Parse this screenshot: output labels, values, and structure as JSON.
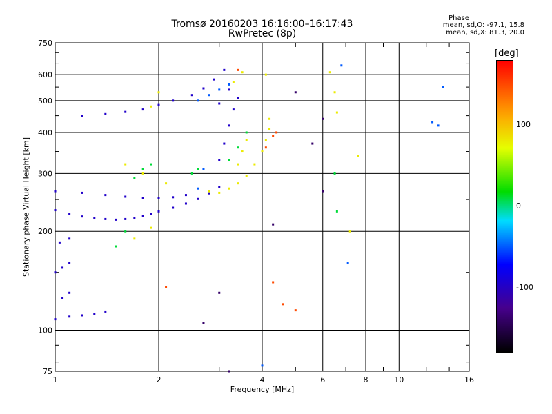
{
  "chart_data": {
    "type": "scatter",
    "title": "Tromsø 20160203 16:16:00–16:17:43",
    "subtitle": "RwPretec (8p)",
    "xlabel": "Frequency [MHz]",
    "ylabel": "Stationary phase Virtual Height [km]",
    "x_scale": "log",
    "y_scale": "log",
    "xlim": [
      1,
      16
    ],
    "ylim": [
      75,
      750
    ],
    "x_ticks": [
      1,
      2,
      4,
      6,
      8,
      10,
      16
    ],
    "y_ticks": [
      75,
      100,
      200,
      300,
      400,
      500,
      600,
      750
    ],
    "grid": true,
    "phase_stats": {
      "title": "Phase",
      "o_line": "mean, sd,O: -97.1, 15.8",
      "x_line": "mean, sd,X:  81.3, 20.0"
    },
    "colorbar": {
      "label": "[deg]",
      "range": [
        -180,
        180
      ],
      "ticks": [
        100,
        0,
        -100
      ]
    },
    "series": [
      {
        "points": [
          [
            1.0,
            108
          ],
          [
            1.1,
            110
          ],
          [
            1.2,
            111
          ],
          [
            1.3,
            112
          ],
          [
            1.4,
            114
          ],
          [
            1.05,
            125
          ],
          [
            1.1,
            130
          ],
          [
            1.0,
            150
          ],
          [
            1.05,
            155
          ],
          [
            1.1,
            160
          ],
          [
            1.03,
            185
          ],
          [
            1.1,
            190
          ],
          [
            1.0,
            232
          ],
          [
            1.1,
            226
          ],
          [
            1.2,
            222
          ],
          [
            1.3,
            220
          ],
          [
            1.4,
            218
          ],
          [
            1.5,
            217
          ],
          [
            1.6,
            218
          ],
          [
            1.7,
            220
          ],
          [
            1.8,
            223
          ],
          [
            1.9,
            226
          ],
          [
            2.0,
            230
          ],
          [
            2.2,
            236
          ],
          [
            2.4,
            243
          ],
          [
            2.6,
            251
          ],
          [
            2.8,
            261
          ],
          [
            3.0,
            273
          ],
          [
            1.0,
            265
          ],
          [
            1.2,
            262
          ],
          [
            1.4,
            258
          ],
          [
            1.6,
            255
          ],
          [
            1.8,
            253
          ],
          [
            2.0,
            252
          ],
          [
            2.2,
            254
          ],
          [
            2.4,
            258
          ],
          [
            1.2,
            450
          ],
          [
            1.4,
            455
          ],
          [
            1.6,
            462
          ],
          [
            1.8,
            470
          ],
          [
            2.0,
            485
          ],
          [
            2.2,
            500
          ],
          [
            2.5,
            520
          ],
          [
            2.7,
            545
          ],
          [
            2.9,
            580
          ],
          [
            3.1,
            620
          ],
          [
            3.0,
            330
          ],
          [
            3.1,
            370
          ],
          [
            3.2,
            420
          ],
          [
            3.3,
            470
          ],
          [
            3.4,
            510
          ],
          [
            3.0,
            490
          ],
          [
            3.2,
            540
          ]
        ],
        "phase": -97
      },
      {
        "points": [
          [
            2.8,
            265
          ],
          [
            3.0,
            262
          ],
          [
            3.2,
            270
          ],
          [
            3.4,
            280
          ],
          [
            3.6,
            295
          ],
          [
            3.8,
            320
          ],
          [
            4.0,
            350
          ],
          [
            4.1,
            380
          ],
          [
            4.2,
            410
          ],
          [
            4.2,
            440
          ],
          [
            3.4,
            320
          ],
          [
            3.5,
            350
          ],
          [
            3.6,
            380
          ],
          [
            3.5,
            610
          ],
          [
            3.3,
            570
          ],
          [
            2.0,
            530
          ],
          [
            1.9,
            480
          ],
          [
            1.6,
            320
          ],
          [
            1.8,
            300
          ],
          [
            2.1,
            280
          ],
          [
            4.1,
            600
          ],
          [
            6.3,
            610
          ],
          [
            6.5,
            530
          ],
          [
            6.6,
            460
          ],
          [
            7.2,
            200
          ],
          [
            7.6,
            340
          ],
          [
            1.7,
            190
          ],
          [
            1.9,
            205
          ]
        ],
        "phase": 81
      },
      {
        "points": [
          [
            1.5,
            180
          ],
          [
            1.6,
            200
          ],
          [
            1.7,
            290
          ],
          [
            1.8,
            310
          ],
          [
            1.9,
            320
          ],
          [
            2.5,
            300
          ],
          [
            2.6,
            310
          ],
          [
            3.2,
            330
          ],
          [
            3.4,
            360
          ],
          [
            3.6,
            400
          ],
          [
            6.5,
            300
          ],
          [
            6.6,
            230
          ]
        ],
        "phase": 10
      },
      {
        "points": [
          [
            2.6,
            500
          ],
          [
            2.8,
            520
          ],
          [
            3.0,
            540
          ],
          [
            3.2,
            560
          ],
          [
            2.7,
            310
          ],
          [
            2.6,
            270
          ],
          [
            7.1,
            160
          ],
          [
            4.0,
            78
          ],
          [
            12.5,
            430
          ],
          [
            13.0,
            420
          ],
          [
            13.4,
            550
          ],
          [
            6.8,
            640
          ]
        ],
        "phase": -50
      },
      {
        "points": [
          [
            4.6,
            120
          ],
          [
            5.0,
            115
          ],
          [
            4.3,
            140
          ],
          [
            2.1,
            135
          ],
          [
            3.4,
            620
          ],
          [
            4.3,
            390
          ],
          [
            4.4,
            400
          ],
          [
            4.1,
            360
          ]
        ],
        "phase": 150
      },
      {
        "points": [
          [
            5.0,
            530
          ],
          [
            6.0,
            440
          ],
          [
            6.0,
            265
          ],
          [
            5.6,
            370
          ],
          [
            2.7,
            105
          ],
          [
            3.2,
            75
          ],
          [
            3.0,
            130
          ],
          [
            4.3,
            210
          ]
        ],
        "phase": -140
      }
    ]
  }
}
